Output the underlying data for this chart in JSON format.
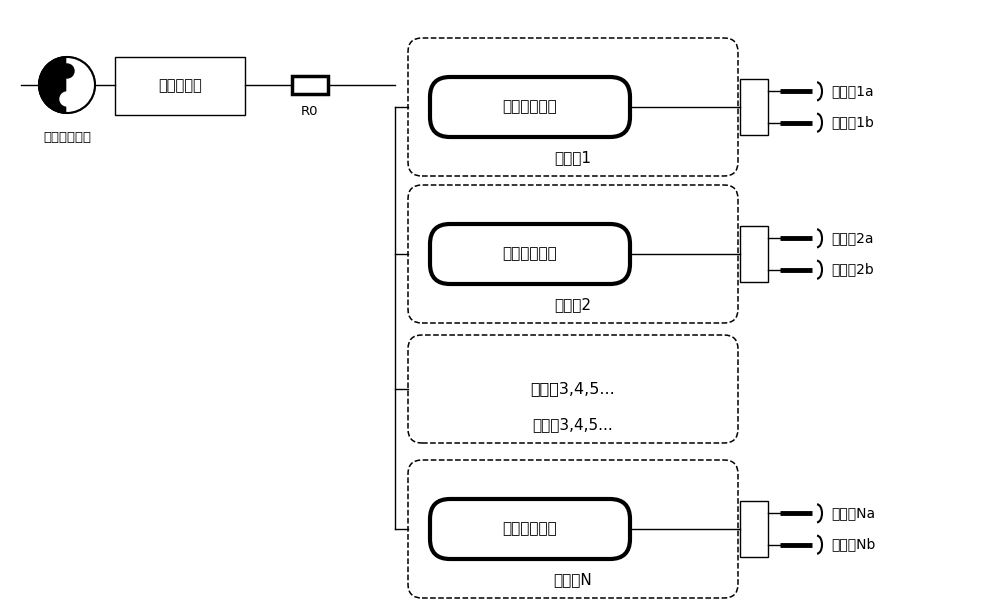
{
  "bg_color": "#ffffff",
  "line_color": "#000000",
  "source_label": "交流电源输入",
  "meter_label": "交流计量点",
  "resistor_label": "R0",
  "stations": [
    {
      "label": "充电桩1",
      "module": "桩内功能模块",
      "guns": [
        "充电枪1a",
        "充电枪1b"
      ],
      "has_module": true
    },
    {
      "label": "充电桩2",
      "module": "桩内功能模块",
      "guns": [
        "充电枪2a",
        "充电枪2b"
      ],
      "has_module": true
    },
    {
      "label": "充电桩3,4,5...",
      "module": "",
      "guns": [],
      "has_module": false
    },
    {
      "label": "充电桩N",
      "module": "桩内功能模块",
      "guns": [
        "充电枪Na",
        "充电枪Nb"
      ],
      "has_module": true
    }
  ]
}
